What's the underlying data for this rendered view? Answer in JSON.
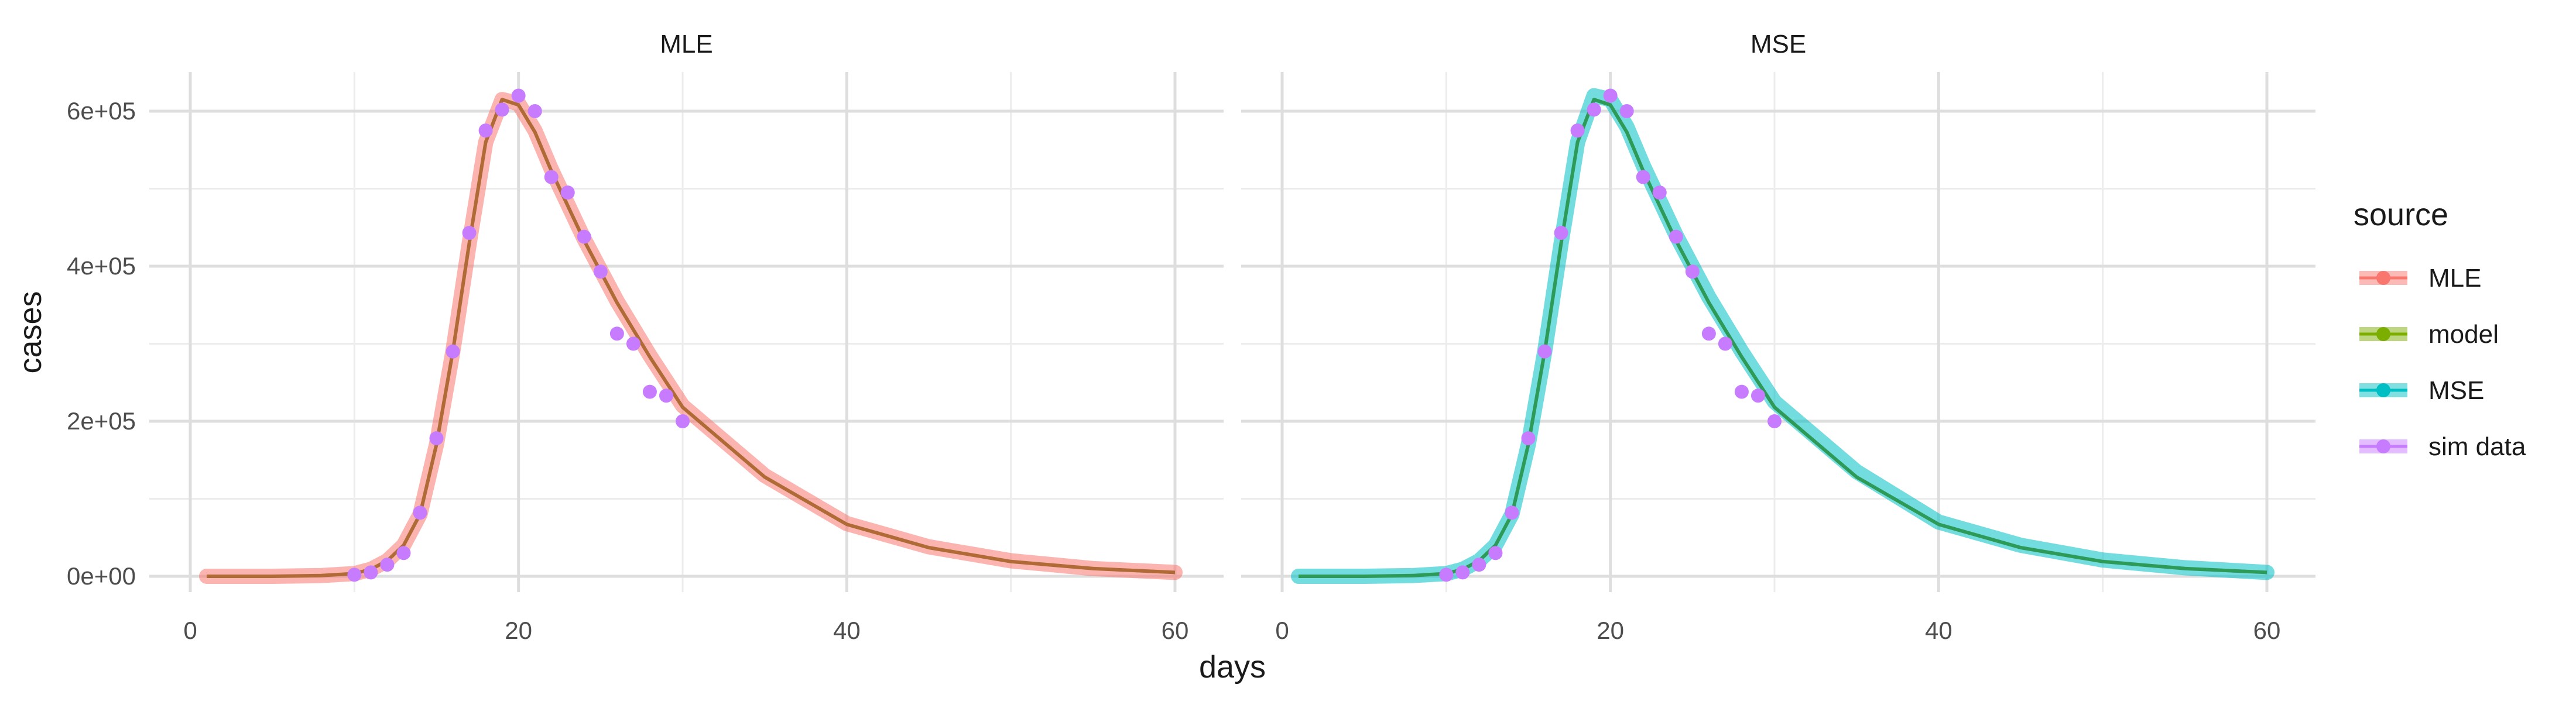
{
  "chart_data": {
    "type": "line",
    "xlabel": "days",
    "ylabel": "cases",
    "xlim": [
      0,
      60
    ],
    "ylim": [
      0,
      650000
    ],
    "x_ticks": [
      0,
      20,
      40,
      60
    ],
    "x_tick_labels": [
      "0",
      "20",
      "40",
      "60"
    ],
    "y_ticks": [
      0,
      200000,
      400000,
      600000
    ],
    "y_tick_labels": [
      "0e+00",
      "2e+05",
      "4e+05",
      "6e+05"
    ],
    "grid": true,
    "legend": {
      "title": "source",
      "position": "right",
      "entries": [
        {
          "label": "MLE",
          "color": "#F8766D"
        },
        {
          "label": "model",
          "color": "#7CAE00"
        },
        {
          "label": "MSE",
          "color": "#00BFC4"
        },
        {
          "label": "sim data",
          "color": "#C77CFF"
        }
      ]
    },
    "panels": [
      {
        "title": "MLE",
        "fit_series": "MLE",
        "fit_color": "#F8766D",
        "model_color": "#b06a35"
      },
      {
        "title": "MSE",
        "fit_series": "MSE",
        "fit_color": "#00BFC4",
        "model_color": "#2e9a58"
      }
    ],
    "series": [
      {
        "name": "MLE",
        "x": [
          1,
          5,
          8,
          10,
          11,
          12,
          13,
          14,
          15,
          16,
          17,
          18,
          19,
          20,
          21,
          22,
          24,
          26,
          28,
          30,
          35,
          40,
          45,
          50,
          55,
          60
        ],
        "y": [
          0,
          0,
          1000,
          3500,
          9000,
          20000,
          40000,
          80000,
          170000,
          290000,
          430000,
          560000,
          615000,
          610000,
          575000,
          525000,
          435000,
          355000,
          285000,
          220000,
          130000,
          68000,
          38000,
          20000,
          10000,
          5000
        ]
      },
      {
        "name": "model",
        "x": [
          1,
          5,
          8,
          10,
          11,
          12,
          13,
          14,
          15,
          16,
          17,
          18,
          19,
          20,
          21,
          22,
          24,
          26,
          28,
          30,
          35,
          40,
          45,
          50,
          55,
          60
        ],
        "y": [
          0,
          0,
          1000,
          3500,
          9000,
          20000,
          40000,
          80000,
          170000,
          290000,
          430000,
          560000,
          615000,
          608000,
          573000,
          523000,
          433000,
          353000,
          283000,
          218000,
          128000,
          67000,
          37000,
          19000,
          10000,
          5000
        ]
      },
      {
        "name": "MSE",
        "x": [
          1,
          5,
          8,
          10,
          11,
          12,
          13,
          14,
          15,
          16,
          17,
          18,
          19,
          20,
          21,
          22,
          24,
          26,
          28,
          30,
          35,
          40,
          45,
          50,
          55,
          60
        ],
        "y": [
          0,
          0,
          1000,
          3500,
          9000,
          20000,
          40000,
          80000,
          170000,
          290000,
          430000,
          560000,
          620000,
          615000,
          580000,
          530000,
          440000,
          360000,
          290000,
          225000,
          135000,
          70000,
          40000,
          21000,
          11000,
          5000
        ]
      },
      {
        "name": "sim data",
        "x": [
          10,
          11,
          12,
          13,
          14,
          15,
          16,
          17,
          18,
          19,
          20,
          21,
          22,
          23,
          24,
          25,
          26,
          27,
          28,
          29,
          30
        ],
        "y": [
          2000,
          5000,
          15000,
          30000,
          82000,
          178000,
          290000,
          443000,
          575000,
          602000,
          620000,
          600000,
          515000,
          495000,
          438000,
          393000,
          313000,
          300000,
          238000,
          233000,
          200000
        ]
      }
    ]
  }
}
